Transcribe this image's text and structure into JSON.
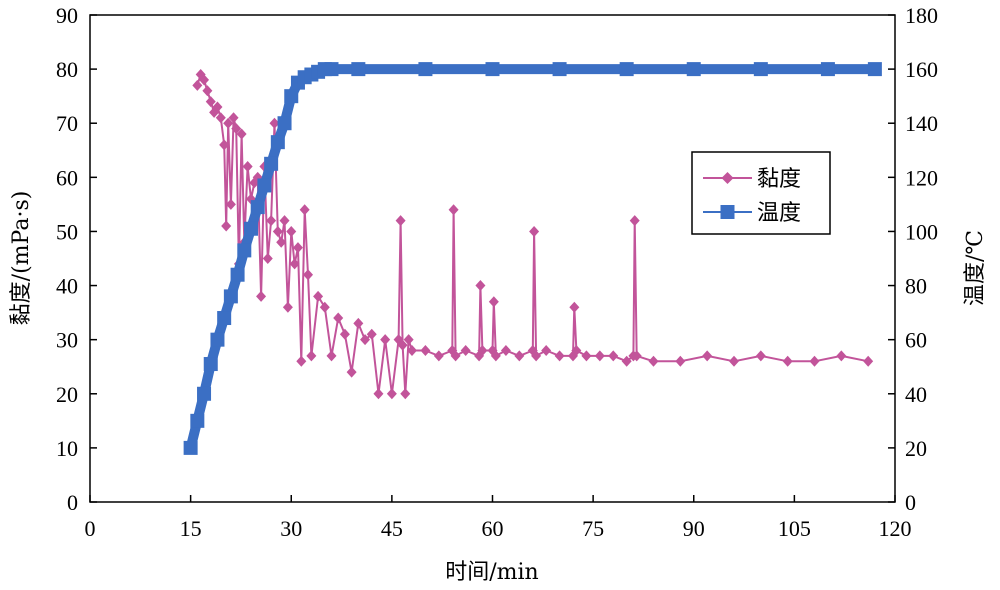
{
  "chart_data": {
    "type": "line",
    "xlabel": "时间/min",
    "ylabel_left": "黏度/(mPa·s)",
    "ylabel_right": "温度/℃",
    "xlim": [
      0,
      120
    ],
    "ylim_left": [
      0,
      90
    ],
    "ylim_right": [
      0,
      180
    ],
    "x_ticks": [
      "0",
      "15",
      "30",
      "45",
      "60",
      "75",
      "90",
      "105",
      "120"
    ],
    "y_left_ticks": [
      "0",
      "10",
      "20",
      "30",
      "40",
      "50",
      "60",
      "70",
      "80",
      "90"
    ],
    "y_right_ticks": [
      "0",
      "20",
      "40",
      "60",
      "80",
      "100",
      "120",
      "140",
      "160",
      "180"
    ],
    "grid": false,
    "legend_position": "right-middle",
    "series": [
      {
        "name": "黏度",
        "axis": "left",
        "color": "#c2549a",
        "marker": "diamond",
        "x": [
          16,
          16.5,
          17,
          17.5,
          18,
          18.5,
          19,
          19.5,
          20,
          20.3,
          20.6,
          21,
          21.4,
          21.8,
          22.2,
          22.6,
          23,
          23.5,
          24,
          24.5,
          25,
          25.5,
          26,
          26.5,
          27,
          27.5,
          28,
          28.5,
          29,
          29.5,
          30,
          30.5,
          31,
          31.5,
          32,
          32.5,
          33,
          34,
          35,
          36,
          37,
          38,
          39,
          40,
          41,
          42,
          43,
          44,
          45,
          46,
          46.3,
          46.6,
          47,
          47.5,
          48,
          50,
          52,
          54,
          54.2,
          54.5,
          56,
          58,
          58.2,
          58.5,
          60,
          60.2,
          60.5,
          62,
          64,
          66,
          66.2,
          66.5,
          68,
          70,
          72,
          72.2,
          72.5,
          74,
          76,
          78,
          80,
          81,
          81.2,
          81.5,
          84,
          88,
          92,
          96,
          100,
          104,
          108,
          112,
          116
        ],
        "y": [
          77,
          79,
          78,
          76,
          74,
          72,
          73,
          71,
          66,
          51,
          70,
          55,
          71,
          69,
          44,
          68,
          48,
          62,
          56,
          59,
          60,
          38,
          62,
          45,
          52,
          70,
          50,
          48,
          52,
          36,
          50,
          44,
          47,
          26,
          54,
          42,
          27,
          38,
          36,
          27,
          34,
          31,
          24,
          33,
          30,
          31,
          20,
          30,
          20,
          30,
          52,
          29,
          20,
          30,
          28,
          28,
          27,
          28,
          54,
          27,
          28,
          27,
          40,
          28,
          28,
          37,
          27,
          28,
          27,
          28,
          50,
          27,
          28,
          27,
          27,
          36,
          28,
          27,
          27,
          27,
          26,
          27,
          52,
          27,
          26,
          26,
          27,
          26,
          27,
          26,
          26,
          27,
          26
        ]
      },
      {
        "name": "温度",
        "axis": "right",
        "color": "#3b6fc4",
        "marker": "square",
        "x": [
          15,
          16,
          17,
          18,
          19,
          20,
          21,
          22,
          23,
          24,
          25,
          26,
          27,
          28,
          29,
          30,
          31,
          32,
          33,
          34,
          35,
          36,
          40,
          50,
          60,
          70,
          80,
          90,
          100,
          110,
          117
        ],
        "y": [
          20,
          30,
          40,
          51,
          60,
          68,
          76,
          84,
          93,
          101,
          109,
          117,
          125,
          133,
          140,
          150,
          155,
          157,
          158,
          159,
          160,
          160,
          160,
          160,
          160,
          160,
          160,
          160,
          160,
          160,
          160
        ]
      }
    ]
  }
}
